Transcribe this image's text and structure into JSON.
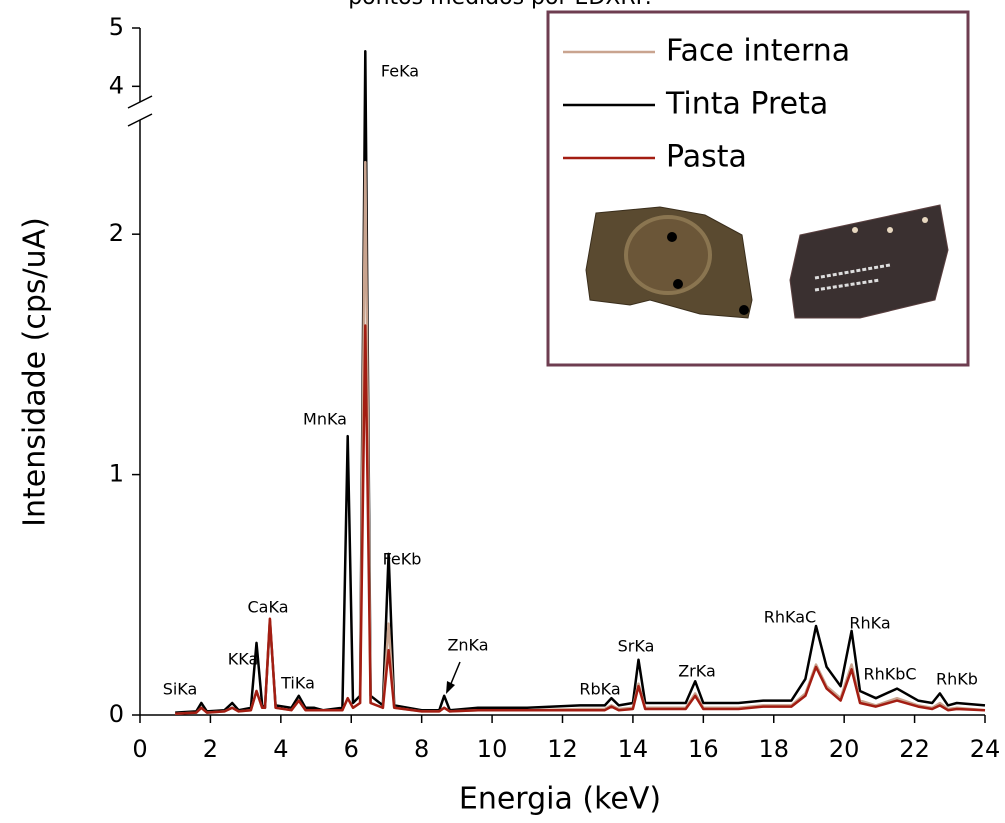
{
  "chart_data": {
    "type": "line",
    "title": "pontos medidos por EDXRF.",
    "x_label": "Energia (keV)",
    "y_label": "Intensidade (cps/uA)",
    "xlim": [
      0,
      24
    ],
    "xticks": [
      0,
      2,
      4,
      6,
      8,
      10,
      12,
      14,
      16,
      18,
      20,
      22,
      24
    ],
    "ylim": [
      0,
      5
    ],
    "ybreak": [
      2.45,
      3.8
    ],
    "yticks": [
      0,
      1,
      2,
      4,
      5
    ],
    "legend": "upper right",
    "x": [
      1.0,
      1.6,
      1.74,
      1.9,
      2.4,
      2.62,
      2.8,
      3.15,
      3.31,
      3.47,
      3.55,
      3.69,
      3.85,
      4.3,
      4.51,
      4.7,
      4.95,
      5.2,
      5.75,
      5.9,
      6.05,
      6.25,
      6.4,
      6.55,
      6.9,
      7.06,
      7.22,
      8.0,
      8.5,
      8.64,
      8.8,
      9.6,
      11,
      12.5,
      13.2,
      13.39,
      13.6,
      14.0,
      14.16,
      14.35,
      14.96,
      15.5,
      15.77,
      16.0,
      17.0,
      17.7,
      18.5,
      18.9,
      19.2,
      19.5,
      19.9,
      20.21,
      20.45,
      20.9,
      21.5,
      22.1,
      22.5,
      22.72,
      22.95,
      23.2,
      24.0
    ],
    "series": [
      {
        "name": "Face interna",
        "color": "#c9a48f",
        "values": [
          0.005,
          0.01,
          0.03,
          0.01,
          0.015,
          0.03,
          0.015,
          0.02,
          0.1,
          0.03,
          0.03,
          0.4,
          0.03,
          0.02,
          0.06,
          0.02,
          0.02,
          0.02,
          0.02,
          0.07,
          0.03,
          0.05,
          2.3,
          0.05,
          0.03,
          0.38,
          0.03,
          0.015,
          0.015,
          0.03,
          0.015,
          0.02,
          0.02,
          0.025,
          0.025,
          0.04,
          0.025,
          0.03,
          0.13,
          0.03,
          0.03,
          0.03,
          0.09,
          0.03,
          0.03,
          0.04,
          0.04,
          0.09,
          0.21,
          0.12,
          0.07,
          0.21,
          0.06,
          0.04,
          0.07,
          0.04,
          0.03,
          0.05,
          0.025,
          0.03,
          0.02
        ]
      },
      {
        "name": "Tinta Preta",
        "color": "#000000",
        "values": [
          0.01,
          0.015,
          0.05,
          0.015,
          0.02,
          0.05,
          0.02,
          0.03,
          0.3,
          0.04,
          0.03,
          0.39,
          0.04,
          0.03,
          0.08,
          0.03,
          0.03,
          0.02,
          0.03,
          1.16,
          0.05,
          0.08,
          4.6,
          0.08,
          0.04,
          0.67,
          0.04,
          0.02,
          0.02,
          0.08,
          0.02,
          0.03,
          0.03,
          0.04,
          0.04,
          0.07,
          0.04,
          0.05,
          0.23,
          0.05,
          0.05,
          0.05,
          0.14,
          0.05,
          0.05,
          0.06,
          0.06,
          0.15,
          0.37,
          0.2,
          0.12,
          0.35,
          0.1,
          0.07,
          0.11,
          0.06,
          0.05,
          0.09,
          0.04,
          0.05,
          0.04
        ]
      },
      {
        "name": "Pasta",
        "color": "#a31d12",
        "values": [
          0.005,
          0.01,
          0.03,
          0.01,
          0.015,
          0.03,
          0.015,
          0.02,
          0.1,
          0.03,
          0.03,
          0.4,
          0.03,
          0.02,
          0.06,
          0.02,
          0.02,
          0.02,
          0.02,
          0.07,
          0.03,
          0.05,
          1.62,
          0.05,
          0.03,
          0.27,
          0.03,
          0.015,
          0.015,
          0.03,
          0.015,
          0.02,
          0.02,
          0.02,
          0.02,
          0.035,
          0.02,
          0.025,
          0.12,
          0.025,
          0.025,
          0.025,
          0.08,
          0.025,
          0.025,
          0.035,
          0.035,
          0.08,
          0.2,
          0.11,
          0.06,
          0.19,
          0.05,
          0.035,
          0.06,
          0.035,
          0.025,
          0.04,
          0.02,
          0.025,
          0.02
        ]
      }
    ],
    "annotations": [
      "SiKa",
      "KKa",
      "CaKa",
      "TiKa",
      "MnKa",
      "FeKa",
      "FeKb",
      "ZnKa",
      "RbKa",
      "SrKa",
      "ZrKa",
      "RhKaC",
      "RhKa",
      "RhKbC",
      "RhKb"
    ]
  }
}
